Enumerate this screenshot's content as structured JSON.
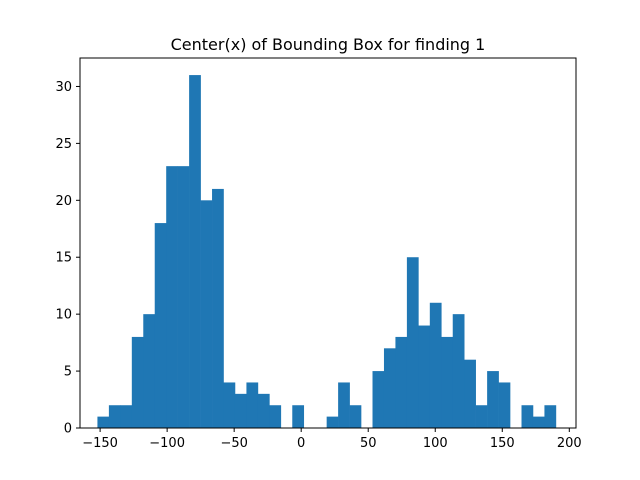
{
  "chart_data": {
    "type": "bar",
    "title": "Center(x) of Bounding Box for finding 1",
    "xlabel": "",
    "ylabel": "",
    "bin_start": -152,
    "bin_width": 8.55,
    "counts": [
      1,
      2,
      2,
      8,
      10,
      18,
      23,
      23,
      31,
      20,
      21,
      4,
      3,
      4,
      3,
      2,
      0,
      2,
      0,
      0,
      1,
      4,
      2,
      0,
      5,
      7,
      8,
      15,
      9,
      11,
      8,
      10,
      6,
      2,
      5,
      4,
      0,
      2,
      1,
      2
    ],
    "xlim": [
      -165,
      205
    ],
    "ylim": [
      0,
      32.5
    ],
    "x_ticks": [
      -150,
      -100,
      -50,
      0,
      50,
      100,
      150,
      200
    ],
    "x_tick_labels": [
      "−150",
      "−100",
      "−50",
      "0",
      "50",
      "100",
      "150",
      "200"
    ],
    "y_ticks": [
      0,
      5,
      10,
      15,
      20,
      25,
      30
    ],
    "y_tick_labels": [
      "0",
      "5",
      "10",
      "15",
      "20",
      "25",
      "30"
    ],
    "bar_color": "#1f77b4",
    "grid": false,
    "legend": false
  }
}
